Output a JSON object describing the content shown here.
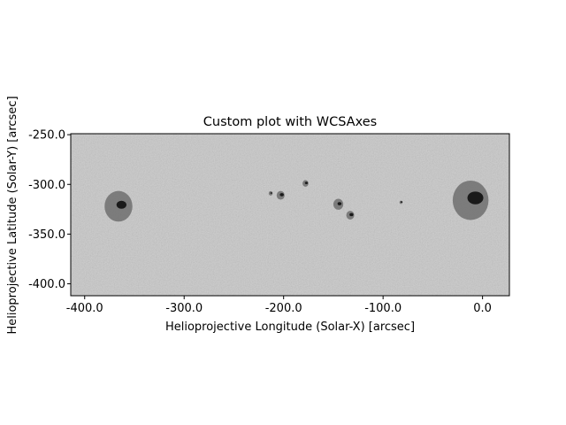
{
  "chart_data": {
    "type": "heatmap",
    "title": "Custom plot with WCSAxes",
    "xlabel": "Helioprojective Longitude (Solar-X) [arcsec]",
    "ylabel": "Helioprojective Latitude (Solar-Y) [arcsec]",
    "xlim": [
      -414,
      27
    ],
    "ylim": [
      -412,
      -249
    ],
    "x_ticks": [
      {
        "value": -400,
        "label": "-400.0"
      },
      {
        "value": -300,
        "label": "-300.0"
      },
      {
        "value": -200,
        "label": "-200.0"
      },
      {
        "value": -100,
        "label": "-100.0"
      },
      {
        "value": 0,
        "label": "0.0"
      }
    ],
    "y_ticks": [
      {
        "value": -250,
        "label": "-250.0"
      },
      {
        "value": -300,
        "label": "-300.0"
      },
      {
        "value": -350,
        "label": "-350.0"
      },
      {
        "value": -400,
        "label": "-400.0"
      }
    ],
    "colormap": "gray",
    "background_color": "#c8c8c8",
    "sunspots": [
      {
        "x": -366,
        "y": -322,
        "r": 14,
        "umbra_r": 5
      },
      {
        "x": -12,
        "y": -316,
        "r": 18,
        "umbra_r": 8
      },
      {
        "x": -203,
        "y": -311,
        "r": 4,
        "umbra_r": 2
      },
      {
        "x": -178,
        "y": -299,
        "r": 3,
        "umbra_r": 1.5
      },
      {
        "x": -145,
        "y": -320,
        "r": 5,
        "umbra_r": 2
      },
      {
        "x": -133,
        "y": -331,
        "r": 4,
        "umbra_r": 2
      },
      {
        "x": -213,
        "y": -309,
        "r": 2,
        "umbra_r": 1
      },
      {
        "x": -82,
        "y": -318,
        "r": 1.5,
        "umbra_r": 1
      }
    ]
  }
}
